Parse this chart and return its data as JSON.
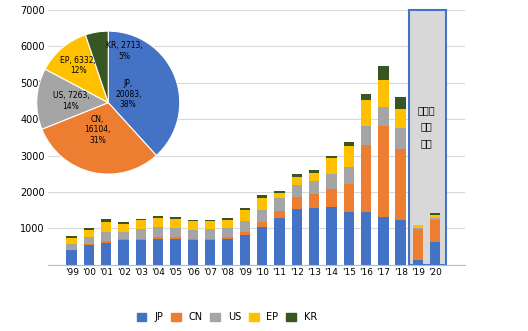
{
  "years": [
    "'99",
    "'00",
    "'01",
    "'02",
    "'03",
    "'04",
    "'05",
    "'06",
    "'07",
    "'08",
    "'09",
    "'10",
    "'11",
    "'12",
    "'13",
    "'14",
    "'15",
    "'16",
    "'17",
    "'18",
    "'19",
    "'20"
  ],
  "JP": [
    400,
    540,
    610,
    670,
    670,
    720,
    700,
    680,
    680,
    700,
    820,
    1050,
    1280,
    1520,
    1550,
    1600,
    1440,
    1450,
    1310,
    1240,
    120,
    620
  ],
  "CN": [
    20,
    30,
    40,
    40,
    50,
    50,
    50,
    40,
    40,
    50,
    70,
    120,
    200,
    340,
    390,
    470,
    780,
    1850,
    2500,
    1950,
    850,
    620
  ],
  "US": [
    150,
    190,
    250,
    180,
    260,
    270,
    260,
    240,
    250,
    260,
    300,
    330,
    360,
    340,
    360,
    420,
    460,
    500,
    530,
    560,
    50,
    50
  ],
  "EP": [
    170,
    200,
    270,
    240,
    240,
    240,
    260,
    230,
    220,
    230,
    310,
    340,
    130,
    220,
    220,
    440,
    580,
    730,
    730,
    540,
    60,
    80
  ],
  "KR": [
    40,
    50,
    75,
    50,
    50,
    55,
    55,
    50,
    40,
    55,
    55,
    65,
    70,
    80,
    80,
    65,
    105,
    160,
    380,
    320,
    25,
    50
  ],
  "pie": {
    "labels": [
      "JP",
      "CN",
      "US",
      "EP",
      "KR"
    ],
    "values": [
      20083,
      16104,
      7263,
      6332,
      2713
    ],
    "percents": [
      "38%",
      "31%",
      "14%",
      "12%",
      "5%"
    ],
    "colors": [
      "#4472c4",
      "#ed7d31",
      "#a5a5a5",
      "#ffc000",
      "#375623"
    ]
  },
  "colors": {
    "JP": "#4472c4",
    "CN": "#ed7d31",
    "US": "#a5a5a5",
    "EP": "#ffc000",
    "KR": "#375623"
  },
  "ylim": [
    0,
    7000
  ],
  "yticks": [
    0,
    1000,
    2000,
    3000,
    4000,
    5000,
    6000,
    7000
  ],
  "box_text": "세미개\n특허\n존재",
  "background_color": "#ffffff",
  "grid_color": "#d9d9d9"
}
